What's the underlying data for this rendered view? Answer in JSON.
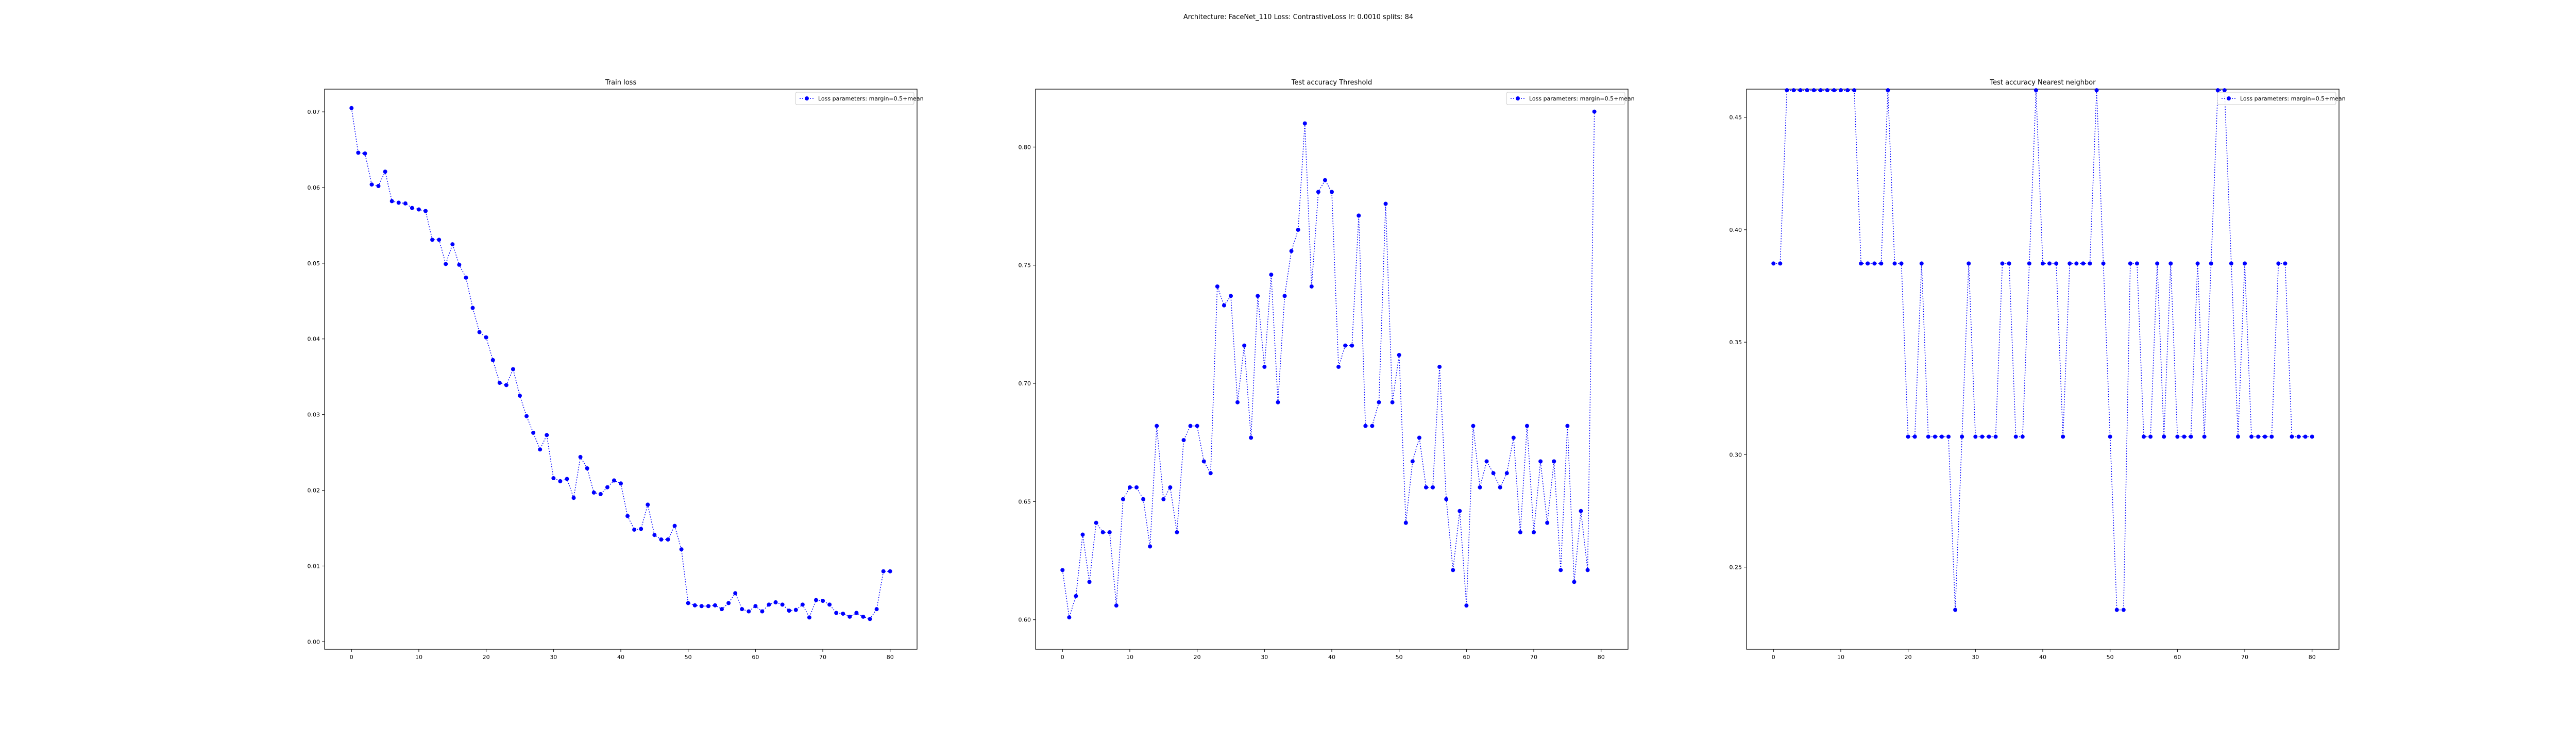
{
  "figure": {
    "suptitle": "Architecture: FaceNet_110  Loss: ContrastiveLoss  lr: 0.0010  splits: 84"
  },
  "colors": {
    "series": "#0000ff",
    "axes": "#000000",
    "background": "#ffffff"
  },
  "chart_data": [
    {
      "type": "line",
      "title": "Train loss",
      "xlabel": "",
      "ylabel": "",
      "xlim": [
        -4,
        84
      ],
      "ylim": [
        -0.001,
        0.073
      ],
      "xticks": [
        0,
        10,
        20,
        30,
        40,
        50,
        60,
        70,
        80
      ],
      "yticks": [
        0.0,
        0.01,
        0.02,
        0.03,
        0.04,
        0.05,
        0.06,
        0.07
      ],
      "yticks_text": [
        "0.00",
        "0.01",
        "0.02",
        "0.03",
        "0.04",
        "0.05",
        "0.06",
        "0.07"
      ],
      "grid": false,
      "legend_position": "upper right",
      "marker": "circle",
      "line_style": "dotted",
      "series": [
        {
          "name": "Loss parameters: margin=0.5+mean",
          "color": "#0000ff",
          "x": [
            0,
            1,
            2,
            3,
            4,
            5,
            6,
            7,
            8,
            9,
            10,
            11,
            12,
            13,
            14,
            15,
            16,
            17,
            18,
            19,
            20,
            21,
            22,
            23,
            24,
            25,
            26,
            27,
            28,
            29,
            30,
            31,
            32,
            33,
            34,
            35,
            36,
            37,
            38,
            39,
            40,
            41,
            42,
            43,
            44,
            45,
            46,
            47,
            48,
            49,
            50,
            51,
            52,
            53,
            54,
            55,
            56,
            57,
            58,
            59,
            60,
            61,
            62,
            63,
            64,
            65,
            66,
            67,
            68,
            69,
            70,
            71,
            72,
            73,
            74,
            75,
            76,
            77,
            78,
            79,
            80
          ],
          "values": [
            0.0705,
            0.0646,
            0.0645,
            0.0604,
            0.0602,
            0.0621,
            0.0582,
            0.058,
            0.0579,
            0.0573,
            0.0571,
            0.0569,
            0.0531,
            0.0531,
            0.0499,
            0.0525,
            0.0498,
            0.0481,
            0.0441,
            0.0409,
            0.0402,
            0.0372,
            0.0342,
            0.0339,
            0.036,
            0.0325,
            0.0298,
            0.0276,
            0.0254,
            0.0273,
            0.0216,
            0.0212,
            0.0215,
            0.019,
            0.0244,
            0.0229,
            0.0197,
            0.0195,
            0.0204,
            0.0213,
            0.0209,
            0.0166,
            0.0148,
            0.0149,
            0.0181,
            0.0141,
            0.0135,
            0.0135,
            0.0153,
            0.0122,
            0.0051,
            0.0048,
            0.0047,
            0.0047,
            0.0048,
            0.0043,
            0.0051,
            0.0064,
            0.0043,
            0.004,
            0.0047,
            0.004,
            0.0049,
            0.0052,
            0.0049,
            0.0041,
            0.0042,
            0.0049,
            0.0032,
            0.0055,
            0.0054,
            0.0049,
            0.0038,
            0.0037,
            0.0033,
            0.0038,
            0.0033,
            0.003,
            0.0043,
            0.0093,
            0.0093
          ]
        }
      ]
    },
    {
      "type": "line",
      "title": "Test accuracy Threshold",
      "xlabel": "",
      "ylabel": "",
      "xlim": [
        -4,
        84
      ],
      "ylim": [
        0.5875,
        0.8245
      ],
      "xticks": [
        0,
        10,
        20,
        30,
        40,
        50,
        60,
        70,
        80
      ],
      "yticks": [
        0.6,
        0.65,
        0.7,
        0.75,
        0.8
      ],
      "yticks_text": [
        "0.60",
        "0.65",
        "0.70",
        "0.75",
        "0.80"
      ],
      "grid": false,
      "legend_position": "upper right",
      "marker": "circle",
      "line_style": "dotted",
      "series": [
        {
          "name": "Loss parameters: margin=0.5+mean",
          "color": "#0000ff",
          "x": [
            0,
            1,
            2,
            3,
            4,
            5,
            6,
            7,
            8,
            9,
            10,
            11,
            12,
            13,
            14,
            15,
            16,
            17,
            18,
            19,
            20,
            21,
            22,
            23,
            24,
            25,
            26,
            27,
            28,
            29,
            30,
            31,
            32,
            33,
            34,
            35,
            36,
            37,
            38,
            39,
            40,
            41,
            42,
            43,
            44,
            45,
            46,
            47,
            48,
            49,
            50,
            51,
            52,
            53,
            54,
            55,
            56,
            57,
            58,
            59,
            60,
            61,
            62,
            63,
            64,
            65,
            66,
            67,
            68,
            69,
            70,
            71,
            72,
            73,
            74,
            75,
            76,
            77,
            78,
            79
          ],
          "values": [
            0.621,
            0.601,
            0.61,
            0.636,
            0.616,
            0.641,
            0.637,
            0.637,
            0.606,
            0.651,
            0.656,
            0.656,
            0.651,
            0.631,
            0.682,
            0.651,
            0.656,
            0.637,
            0.676,
            0.682,
            0.682,
            0.667,
            0.662,
            0.741,
            0.733,
            0.737,
            0.692,
            0.716,
            0.677,
            0.737,
            0.707,
            0.746,
            0.692,
            0.737,
            0.756,
            0.765,
            0.81,
            0.741,
            0.781,
            0.786,
            0.781,
            0.707,
            0.716,
            0.716,
            0.771,
            0.682,
            0.682,
            0.692,
            0.776,
            0.692,
            0.712,
            0.641,
            0.667,
            0.677,
            0.656,
            0.656,
            0.707,
            0.651,
            0.621,
            0.646,
            0.606,
            0.682,
            0.656,
            0.667,
            0.662,
            0.656,
            0.662,
            0.677,
            0.637,
            0.682,
            0.637,
            0.667,
            0.641,
            0.667,
            0.621,
            0.682,
            0.616,
            0.646,
            0.621,
            0.815
          ]
        }
      ]
    },
    {
      "type": "line",
      "title": "Test accuracy Nearest neighbor",
      "xlabel": "",
      "ylabel": "",
      "xlim": [
        -4,
        84
      ],
      "ylim": [
        0.2135,
        0.4625
      ],
      "xticks": [
        0,
        10,
        20,
        30,
        40,
        50,
        60,
        70,
        80
      ],
      "yticks": [
        0.25,
        0.3,
        0.35,
        0.4,
        0.45
      ],
      "yticks_text": [
        "0.25",
        "0.30",
        "0.35",
        "0.40",
        "0.45"
      ],
      "grid": false,
      "legend_position": "upper right",
      "marker": "circle",
      "line_style": "dotted",
      "series": [
        {
          "name": "Loss parameters: margin=0.5+mean",
          "color": "#0000ff",
          "x": [
            0,
            1,
            2,
            3,
            4,
            5,
            6,
            7,
            8,
            9,
            10,
            11,
            12,
            13,
            14,
            15,
            16,
            17,
            18,
            19,
            20,
            21,
            22,
            23,
            24,
            25,
            26,
            27,
            28,
            29,
            30,
            31,
            32,
            33,
            34,
            35,
            36,
            37,
            38,
            39,
            40,
            41,
            42,
            43,
            44,
            45,
            46,
            47,
            48,
            49,
            50,
            51,
            52,
            53,
            54,
            55,
            56,
            57,
            58,
            59,
            60,
            61,
            62,
            63,
            64,
            65,
            66,
            67,
            68,
            69,
            70,
            71,
            72,
            73,
            74,
            75,
            76,
            77,
            78,
            79,
            80
          ],
          "values": [
            0.385,
            0.385,
            0.462,
            0.462,
            0.462,
            0.462,
            0.462,
            0.462,
            0.462,
            0.462,
            0.462,
            0.462,
            0.462,
            0.385,
            0.385,
            0.385,
            0.385,
            0.462,
            0.385,
            0.385,
            0.308,
            0.308,
            0.385,
            0.308,
            0.308,
            0.308,
            0.308,
            0.231,
            0.308,
            0.385,
            0.308,
            0.308,
            0.308,
            0.308,
            0.385,
            0.385,
            0.308,
            0.308,
            0.385,
            0.462,
            0.385,
            0.385,
            0.385,
            0.308,
            0.385,
            0.385,
            0.385,
            0.385,
            0.462,
            0.385,
            0.308,
            0.231,
            0.231,
            0.385,
            0.385,
            0.308,
            0.308,
            0.385,
            0.308,
            0.385,
            0.308,
            0.308,
            0.308,
            0.385,
            0.308,
            0.385,
            0.462,
            0.462,
            0.385,
            0.308,
            0.385,
            0.308,
            0.308,
            0.308,
            0.308,
            0.385,
            0.385,
            0.308,
            0.308,
            0.308,
            0.308
          ]
        }
      ]
    }
  ]
}
